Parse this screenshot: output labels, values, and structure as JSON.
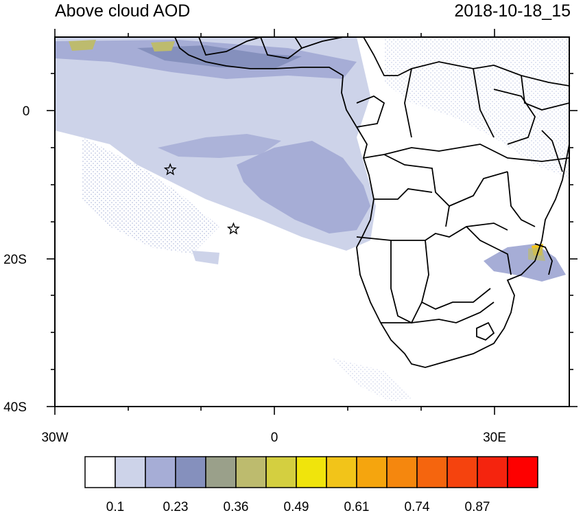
{
  "header": {
    "title": "Above cloud AOD",
    "timestamp": "2018-10-18_15"
  },
  "axes": {
    "x_ticks": [
      "30W",
      "0",
      "30E"
    ],
    "y_ticks": [
      "0",
      "20S",
      "40S"
    ]
  },
  "colorbar": {
    "labels": [
      "0.1",
      "0.23",
      "0.36",
      "0.49",
      "0.61",
      "0.74",
      "0.87"
    ],
    "colors": [
      "#ffffff",
      "#cdd3e9",
      "#a6add6",
      "#8590bd",
      "#9aa08a",
      "#bdbb6e",
      "#d4cf40",
      "#f0e40c",
      "#f2c419",
      "#f5a50e",
      "#f5870e",
      "#f5650e",
      "#f5430e",
      "#f5240e",
      "#fe0000"
    ]
  },
  "markers": [
    {
      "name": "star-marker-1",
      "lon": -14.3,
      "lat": -8.0
    },
    {
      "name": "star-marker-2",
      "lon": -5.7,
      "lat": -16.0
    }
  ]
}
